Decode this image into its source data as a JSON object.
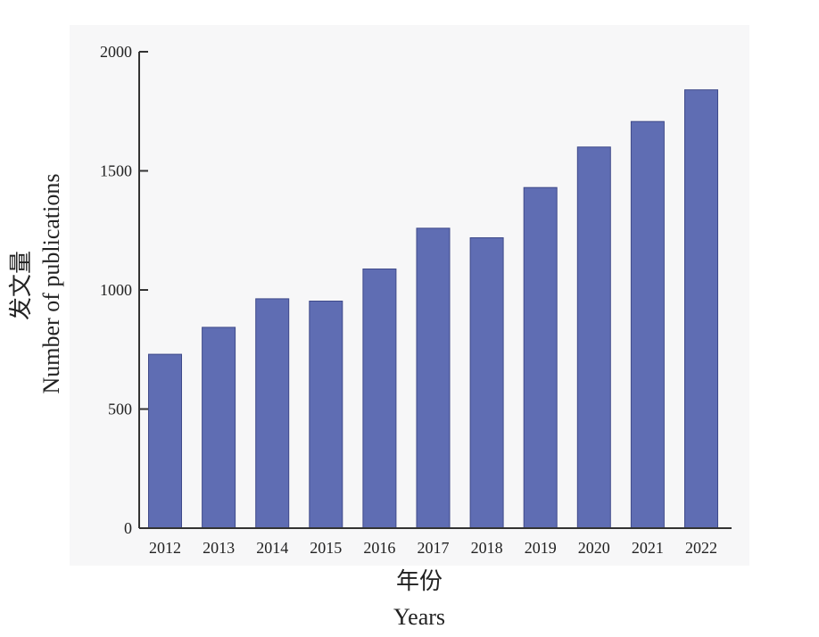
{
  "chart_data": {
    "type": "bar",
    "categories": [
      "2012",
      "2013",
      "2014",
      "2015",
      "2016",
      "2017",
      "2018",
      "2019",
      "2020",
      "2021",
      "2022"
    ],
    "values": [
      730,
      843,
      963,
      953,
      1088,
      1259,
      1219,
      1430,
      1600,
      1707,
      1840
    ],
    "title": "",
    "xlabel": "年份",
    "xlabel_en": "Years",
    "ylabel": "发文量",
    "ylabel_en": "Number of publications",
    "ylim": [
      0,
      2000
    ],
    "yticks": [
      "0",
      "500",
      "1000",
      "1500",
      "2000"
    ],
    "grid": false,
    "legend": "none",
    "colors": {
      "bar": "#5f6db3",
      "bar_edge": "#3f4a8a",
      "plot_background": "#f7f7f8",
      "axis": "#333333"
    }
  }
}
